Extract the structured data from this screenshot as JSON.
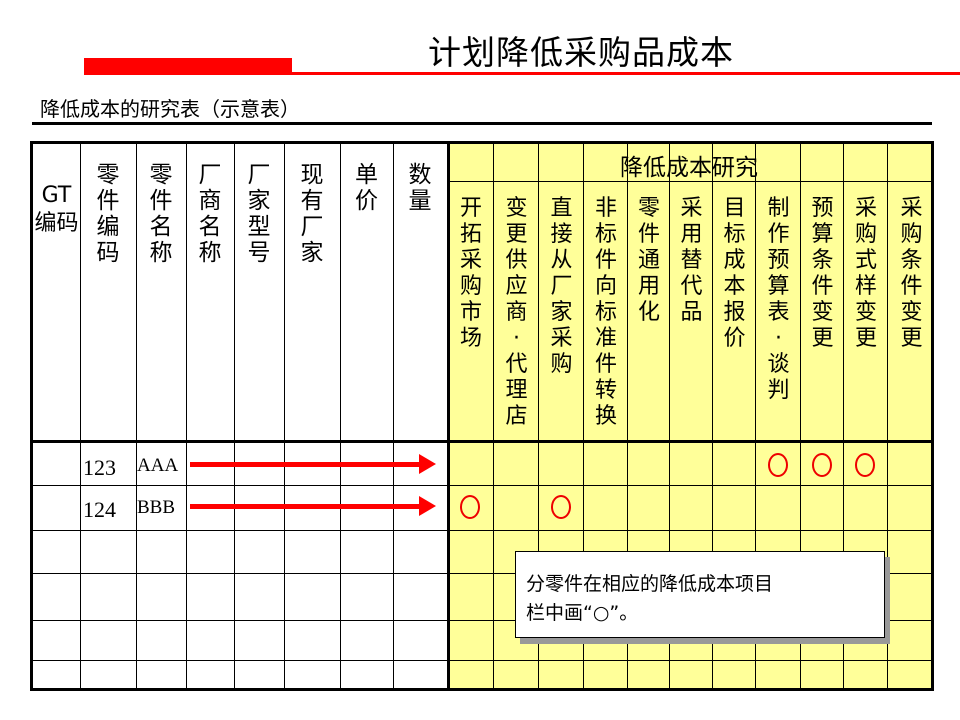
{
  "title": "计划降低采购品成本",
  "subtitle": "降低成本的研究表（示意表）",
  "table": {
    "left_headers": [
      "GT编码",
      "零件编码",
      "零件名称",
      "厂商名称",
      "厂家型号",
      "现有厂家",
      "单价",
      "数量"
    ],
    "group_header": "降低成本研究",
    "research_headers": [
      "开拓采购市场",
      "变更供应商·代理店",
      "直接从厂家采购",
      "非标件向标准件转换",
      "零件通用化",
      "采用替代品",
      "目标成本报价",
      "制作预算表·谈判",
      "预算条件变更",
      "采购式样变更",
      "采购条件变更"
    ],
    "rows": [
      {
        "part_code": "123",
        "part_name": "AAA",
        "marks": [
          false,
          false,
          false,
          false,
          false,
          false,
          false,
          true,
          true,
          true,
          false
        ]
      },
      {
        "part_code": "124",
        "part_name": "BBB",
        "marks": [
          true,
          false,
          true,
          false,
          false,
          false,
          false,
          false,
          false,
          false,
          false
        ]
      }
    ],
    "mark_symbol": "circle"
  },
  "callout": {
    "line1": "分零件在相应的降低成本项目",
    "line2": "栏中画“○”。"
  },
  "colors": {
    "accent": "#ff0000",
    "highlight": "#ffff99"
  }
}
